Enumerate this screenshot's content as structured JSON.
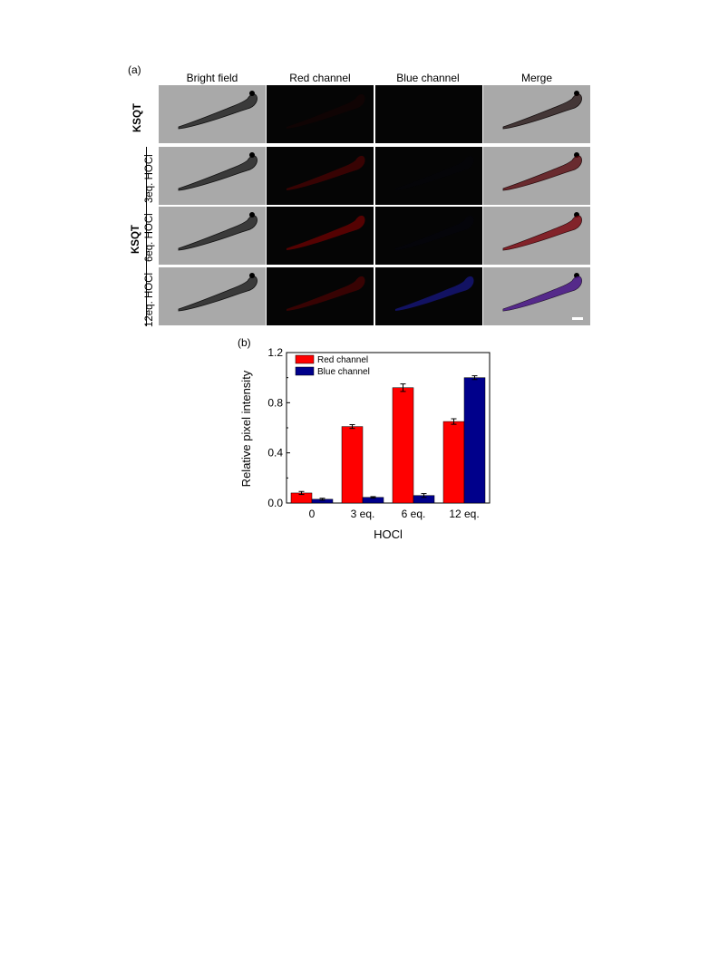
{
  "figure": {
    "panel_a_label": "(a)",
    "panel_b_label": "(b)",
    "columns": [
      "Bright field",
      "Red channel",
      "Blue channel",
      "Merge"
    ],
    "group_label": "KSQT",
    "rows": [
      {
        "label": "KSQT",
        "red_intensity": 0.12,
        "blue_intensity": 0.0
      },
      {
        "label": "3eq. HOCl",
        "red_intensity": 0.55,
        "blue_intensity": 0.04
      },
      {
        "label": "6eq. HOCl",
        "red_intensity": 0.85,
        "blue_intensity": 0.05
      },
      {
        "label": "12eq. HOCl",
        "red_intensity": 0.55,
        "blue_intensity": 0.9
      }
    ],
    "colors": {
      "red": "#ff0000",
      "blue": "#00008b",
      "tile_gray": "#a9a9a9",
      "tile_dark": "#050505"
    }
  },
  "chart_data": {
    "type": "bar",
    "categories": [
      "0",
      "3 eq.",
      "6 eq.",
      "12 eq."
    ],
    "series": [
      {
        "name": "Red channel",
        "color": "#ff0000",
        "values": [
          0.08,
          0.61,
          0.92,
          0.65
        ],
        "errors": [
          0.012,
          0.015,
          0.03,
          0.022
        ]
      },
      {
        "name": "Blue channel",
        "color": "#00008b",
        "values": [
          0.03,
          0.045,
          0.06,
          1.0
        ],
        "errors": [
          0.008,
          0.006,
          0.015,
          0.015
        ]
      }
    ],
    "xlabel": "HOCl",
    "ylabel": "Relative pixel intensity",
    "ylim": [
      0,
      1.2
    ],
    "yticks": [
      "0.0",
      "0.4",
      "0.8",
      "1.2"
    ],
    "legend_position": "top-left",
    "grid": false
  }
}
